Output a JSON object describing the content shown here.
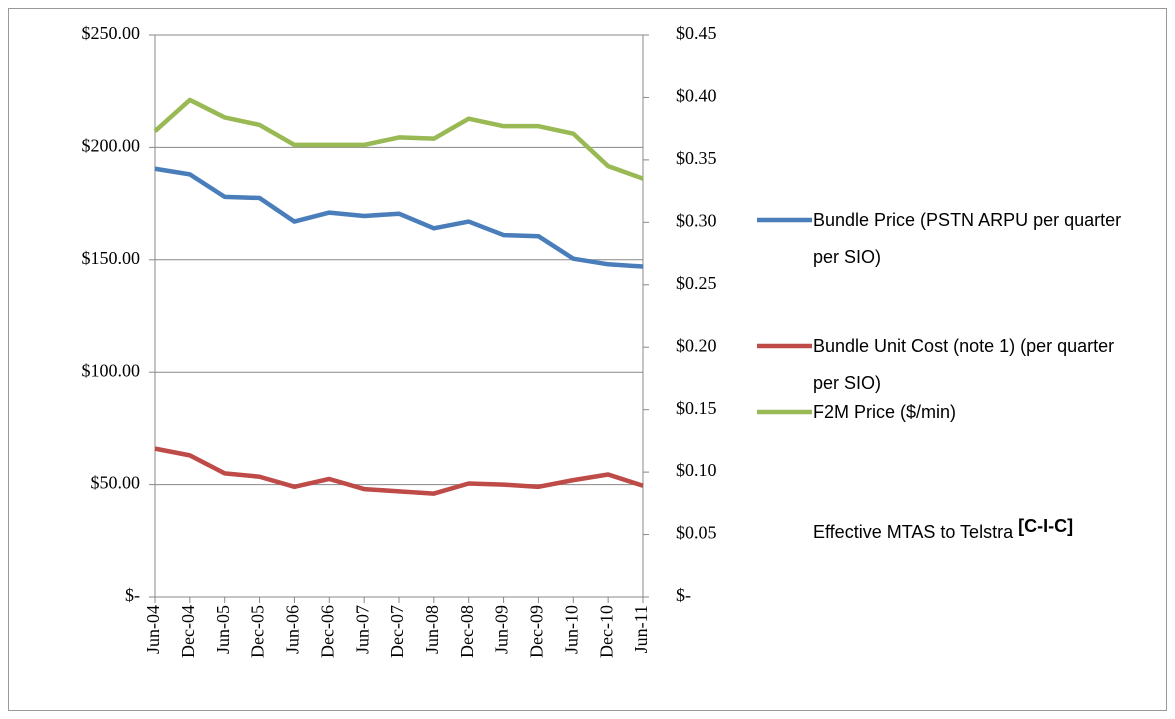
{
  "chart_data": {
    "type": "line",
    "categories": [
      "Jun-04",
      "Dec-04",
      "Jun-05",
      "Dec-05",
      "Jun-06",
      "Dec-06",
      "Jun-07",
      "Dec-07",
      "Jun-08",
      "Dec-08",
      "Jun-09",
      "Dec-09",
      "Jun-10",
      "Dec-10",
      "Jun-11"
    ],
    "series": [
      {
        "name": "Bundle Price (PSTN ARPU per quarter per SIO)",
        "color": "#4a7ebb",
        "values": [
          190.5,
          188,
          178,
          177.5,
          167,
          171,
          169.5,
          170.5,
          164,
          167,
          161,
          160.5,
          150.5,
          148,
          147
        ]
      },
      {
        "name": "Bundle Unit Cost (note 1) (per quarter per SIO)",
        "color": "#be4b48",
        "values": [
          66,
          63,
          55,
          53.5,
          49,
          52.5,
          48,
          47,
          46,
          50.5,
          50,
          49,
          52,
          54.5,
          49.5
        ]
      },
      {
        "name": "F2M Price ($/min)",
        "color": "#98b954",
        "axis": "y2",
        "values": [
          0.373,
          0.398,
          0.384,
          0.378,
          0.362,
          0.362,
          0.362,
          0.368,
          0.367,
          0.383,
          0.377,
          0.377,
          0.371,
          0.345,
          0.335
        ]
      }
    ],
    "ylim": [
      0,
      250
    ],
    "yticks": [
      {
        "value": 0,
        "label": "$-"
      },
      {
        "value": 50,
        "label": "$50.00"
      },
      {
        "value": 100,
        "label": "$100.00"
      },
      {
        "value": 150,
        "label": "$150.00"
      },
      {
        "value": 200,
        "label": "$200.00"
      },
      {
        "value": 250,
        "label": "$250.00"
      }
    ],
    "y2lim": [
      0,
      0.45
    ],
    "y2ticks": [
      {
        "value": 0,
        "label": "$-"
      },
      {
        "value": 0.05,
        "label": "$0.05"
      },
      {
        "value": 0.1,
        "label": "$0.10"
      },
      {
        "value": 0.15,
        "label": "$0.15"
      },
      {
        "value": 0.2,
        "label": "$0.20"
      },
      {
        "value": 0.25,
        "label": "$0.25"
      },
      {
        "value": 0.3,
        "label": "$0.30"
      },
      {
        "value": 0.35,
        "label": "$0.35"
      },
      {
        "value": 0.4,
        "label": "$0.40"
      },
      {
        "value": 0.45,
        "label": "$0.45"
      }
    ],
    "grid": true,
    "legend": "right",
    "annotations": [
      "Effective MTAS to Telstra",
      "[C-I-C]"
    ]
  }
}
